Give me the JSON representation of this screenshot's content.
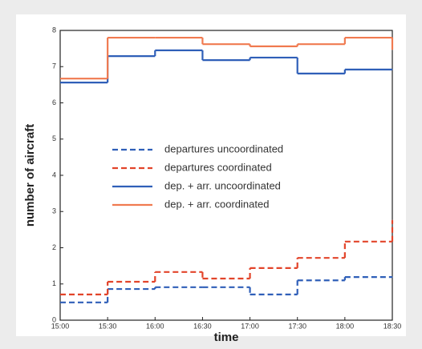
{
  "chart_data": {
    "type": "step",
    "x_label": "time",
    "y_label": "number of aircraft",
    "categories": [
      "15:00",
      "15:30",
      "16:00",
      "16:30",
      "17:00",
      "17:30",
      "18:00",
      "18:30"
    ],
    "ylim": [
      0,
      8
    ],
    "yticks": [
      0,
      1,
      2,
      3,
      4,
      5,
      6,
      7,
      8
    ],
    "series": [
      {
        "name": "departures uncoordinated",
        "color": "#2f5fb8",
        "dash": true,
        "values": [
          0.49,
          0.86,
          0.91,
          0.91,
          0.71,
          1.1,
          1.19,
          1.19
        ]
      },
      {
        "name": "departures coordinated",
        "color": "#e2442a",
        "dash": true,
        "values": [
          0.71,
          1.06,
          1.33,
          1.15,
          1.44,
          1.72,
          2.17,
          2.76
        ]
      },
      {
        "name": "dep. + arr. uncoordinated",
        "color": "#2f5fb8",
        "dash": false,
        "values": [
          6.56,
          7.29,
          7.45,
          7.18,
          7.25,
          6.81,
          6.92,
          6.92
        ]
      },
      {
        "name": "dep. + arr. coordinated",
        "color": "#f07a50",
        "dash": false,
        "values": [
          6.67,
          7.8,
          7.8,
          7.62,
          7.56,
          7.62,
          7.8,
          7.47
        ]
      }
    ]
  }
}
